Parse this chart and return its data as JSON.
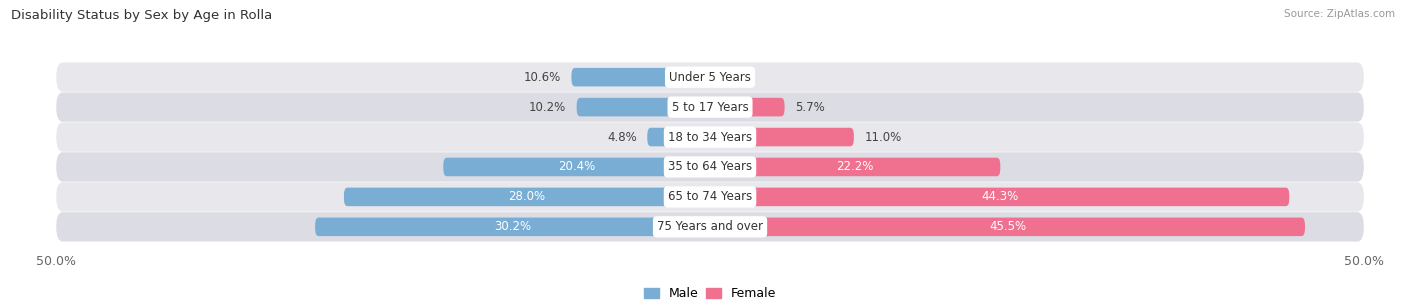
{
  "title": "Disability Status by Sex by Age in Rolla",
  "source": "Source: ZipAtlas.com",
  "categories": [
    "Under 5 Years",
    "5 to 17 Years",
    "18 to 34 Years",
    "35 to 64 Years",
    "65 to 74 Years",
    "75 Years and over"
  ],
  "male_values": [
    10.6,
    10.2,
    4.8,
    20.4,
    28.0,
    30.2
  ],
  "female_values": [
    0.0,
    5.7,
    11.0,
    22.2,
    44.3,
    45.5
  ],
  "male_color": "#7aadd4",
  "female_color": "#f07090",
  "bg_color_a": "#e8e8ec",
  "bg_color_b": "#dcdce4",
  "xlim": 50.0,
  "bar_height": 0.62,
  "label_fontsize": 8.5,
  "title_fontsize": 9.5,
  "cat_fontsize": 8.5,
  "val_fontsize": 8.5
}
